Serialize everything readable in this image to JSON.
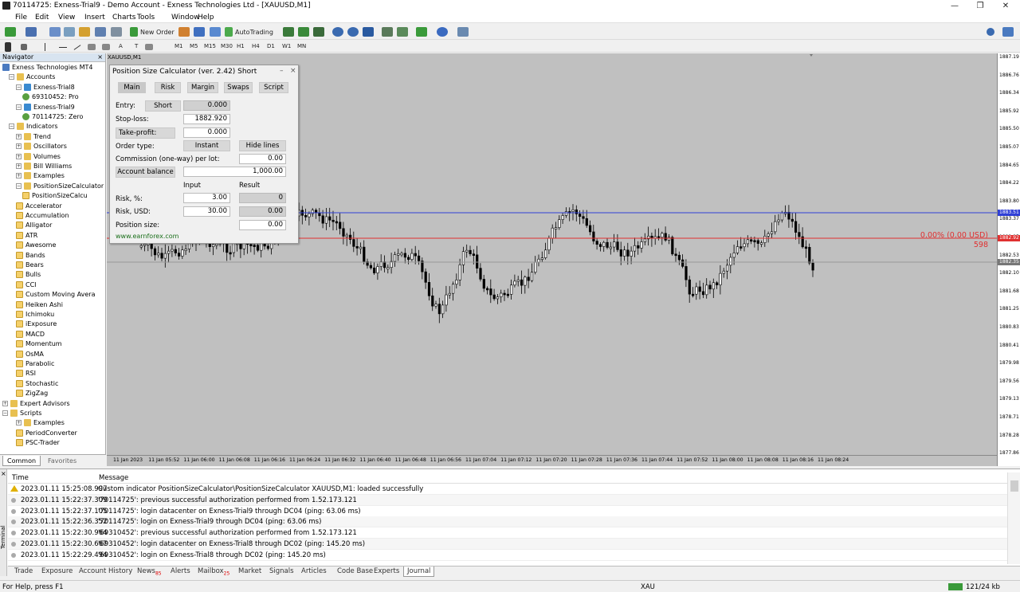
{
  "window": {
    "title": "70114725: Exness-Trial9 - Demo Account - Exness Technologies Ltd - [XAUUSD,M1]",
    "controls": [
      "—",
      "❐",
      "✕"
    ]
  },
  "menu": [
    "File",
    "Edit",
    "View",
    "Insert",
    "Charts",
    "Tools",
    "Window",
    "Help"
  ],
  "toolbar": {
    "new_order": "New Order",
    "autotrading": "AutoTrading",
    "text_tool": "A",
    "label_tool": "T"
  },
  "timeframes": [
    "M1",
    "M5",
    "M15",
    "M30",
    "H1",
    "H4",
    "D1",
    "W1",
    "MN"
  ],
  "navigator": {
    "title": "Navigator",
    "close": "×",
    "items": [
      "Exness Technologies MT4",
      "Accounts",
      "Exness-Trial8",
      "69310452: Pro",
      "Exness-Trial9",
      "70114725: Zero",
      "Indicators",
      "Trend",
      "Oscillators",
      "Volumes",
      "Bill Williams",
      "Examples",
      "PositionSizeCalculator",
      "PositionSizeCalcu",
      "Accelerator",
      "Accumulation",
      "Alligator",
      "ATR",
      "Awesome",
      "Bands",
      "Bears",
      "Bulls",
      "CCI",
      "Custom Moving Avera",
      "Heiken Ashi",
      "Ichimoku",
      "iExposure",
      "MACD",
      "Momentum",
      "OsMA",
      "Parabolic",
      "RSI",
      "Stochastic",
      "ZigZag",
      "Expert Advisors",
      "Scripts",
      "Examples",
      "PeriodConverter",
      "PSC-Trader"
    ],
    "tabs": [
      "Common",
      "Favorites"
    ]
  },
  "chart": {
    "tab": "XAUUSD,M1",
    "price_labels": [
      "1887.19",
      "1886.76",
      "1886.34",
      "1885.92",
      "1885.50",
      "1885.07",
      "1884.65",
      "1884.22",
      "1883.80",
      "1883.37",
      "1882.95",
      "1882.53",
      "1882.10",
      "1881.68",
      "1881.25",
      "1880.83",
      "1880.41",
      "1879.98",
      "1879.56",
      "1879.13",
      "1878.71",
      "1878.28",
      "1877.86"
    ],
    "blue_tag": "1883.51",
    "red_tag": "1882.92",
    "grey_tag": "1882.35",
    "red_line_text": "0.00% (0.00 USD)",
    "red_line_sub": "598",
    "time_labels": [
      "11 Jan 2023",
      "11 Jan 05:52",
      "11 Jan 06:00",
      "11 Jan 06:08",
      "11 Jan 06:16",
      "11 Jan 06:24",
      "11 Jan 06:32",
      "11 Jan 06:40",
      "11 Jan 06:48",
      "11 Jan 06:56",
      "11 Jan 07:04",
      "11 Jan 07:12",
      "11 Jan 07:20",
      "11 Jan 07:28",
      "11 Jan 07:36",
      "11 Jan 07:44",
      "11 Jan 07:52",
      "11 Jan 08:00",
      "11 Jan 08:08",
      "11 Jan 08:16",
      "11 Jan 08:24"
    ],
    "colors": {
      "bg": "#c0c0c0",
      "blue_line": "#2f3fd6",
      "red_line": "#e03030",
      "grey_line": "#999999"
    }
  },
  "psc": {
    "title": "Position Size Calculator (ver. 2.42) Short",
    "ctrls": [
      "–",
      "×"
    ],
    "tabs": [
      "Main",
      "Risk",
      "Margin",
      "Swaps",
      "Script"
    ],
    "entry_label": "Entry:",
    "entry_btn": "Short",
    "entry_value": "0.000",
    "sl_label": "Stop-loss:",
    "sl_value": "1882.920",
    "tp_label": "Take-profit:",
    "tp_value": "0.000",
    "order_type_label": "Order type:",
    "order_type_btn": "Instant",
    "hide_lines_btn": "Hide lines",
    "commission_label": "Commission (one-way) per lot:",
    "commission_value": "0.00",
    "balance_btn": "Account balance",
    "balance_value": "1,000.00",
    "input_head": "Input",
    "result_head": "Result",
    "risk_pct_label": "Risk, %:",
    "risk_pct_input": "3.00",
    "risk_pct_result": "0",
    "risk_usd_label": "Risk, USD:",
    "risk_usd_input": "30.00",
    "risk_usd_result": "0.00",
    "pos_size_label": "Position size:",
    "pos_size_value": "0.00",
    "link": "www.earnforex.com"
  },
  "terminal": {
    "side_label": "Terminal",
    "close": "×",
    "headers": [
      "Time",
      "Message"
    ],
    "rows": [
      {
        "time": "2023.01.11 15:25:08.997",
        "msg": "Custom indicator PositionSizeCalculator\\PositionSizeCalculator XAUUSD,M1: loaded successfully",
        "warn": true
      },
      {
        "time": "2023.01.11 15:22:37.309",
        "msg": "'70114725': previous successful authorization performed from 1.52.173.121"
      },
      {
        "time": "2023.01.11 15:22:37.105",
        "msg": "'70114725': login datacenter on Exness-Trial9 through DC04 (ping: 63.06 ms)"
      },
      {
        "time": "2023.01.11 15:22:36.352",
        "msg": "'70114725': login on Exness-Trial9 through DC04 (ping: 63.06 ms)"
      },
      {
        "time": "2023.01.11 15:22:30.964",
        "msg": "'69310452': previous successful authorization performed from 1.52.173.121"
      },
      {
        "time": "2023.01.11 15:22:30.667",
        "msg": "'69310452': login datacenter on Exness-Trial8 through DC02 (ping: 145.20 ms)"
      },
      {
        "time": "2023.01.11 15:22:29.494",
        "msg": "'69310452': login on Exness-Trial8 through DC02 (ping: 145.20 ms)"
      }
    ],
    "tabs": [
      {
        "label": "Trade"
      },
      {
        "label": "Exposure"
      },
      {
        "label": "Account History"
      },
      {
        "label": "News",
        "badge": "85"
      },
      {
        "label": "Alerts"
      },
      {
        "label": "Mailbox",
        "badge": "25"
      },
      {
        "label": "Market"
      },
      {
        "label": "Signals"
      },
      {
        "label": "Articles"
      },
      {
        "label": "Code Base"
      },
      {
        "label": "Experts"
      },
      {
        "label": "Journal"
      }
    ]
  },
  "status": {
    "help": "For Help, press F1",
    "symbol": "XAU",
    "traffic": "121/24 kb"
  }
}
